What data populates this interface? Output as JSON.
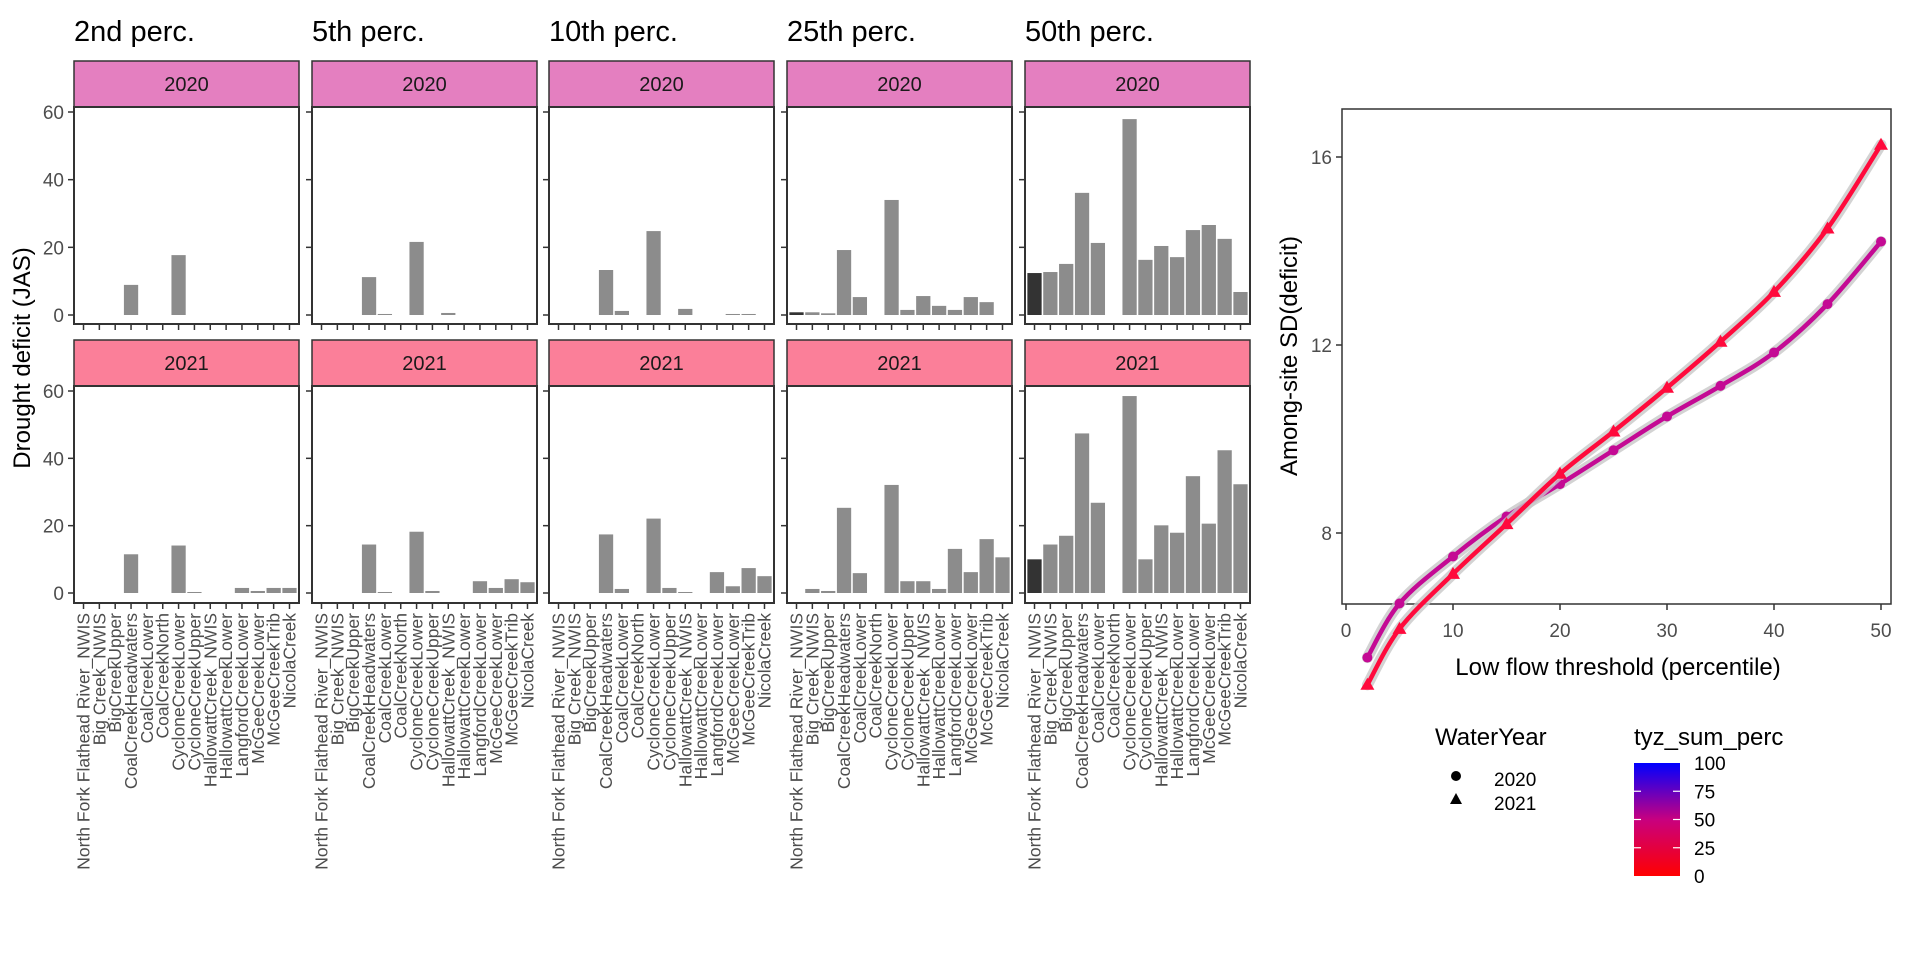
{
  "chart_data": [
    {
      "type": "bar",
      "facets": "columns = percentile threshold, rows = WaterYear",
      "ylabel": "Drought deficit (JAS)",
      "xlabel": "",
      "ylim": [
        0,
        60
      ],
      "yticks": [
        0,
        20,
        40,
        60
      ],
      "categories": [
        "North Fork Flathead River_NWIS",
        "Big Creek_NWIS",
        "BigCreekUpper",
        "CoalCreekHeadwaters",
        "CoalCreekLower",
        "CoalCreekNorth",
        "CycloneCreekLower",
        "CycloneCreekUpper",
        "HallowattCreek_NWIS",
        "HallowattCreekLower",
        "LangfordCreekLower",
        "McGeeCreekLower",
        "McGeeCreekTrib",
        "NicolaCreek"
      ],
      "highlighted_category": "North Fork Flathead River_NWIS",
      "colors": {
        "bar": "#8C8C8C",
        "bar_highlight": "#333333",
        "strip_2020": "#E47FC0",
        "strip_2021": "#FB7F99",
        "border": "#333333"
      },
      "columns": [
        {
          "title": "2nd perc.",
          "rows": [
            {
              "strip": "2020",
              "values": [
                0,
                0,
                0,
                8.9,
                0,
                0,
                17.7,
                0,
                0,
                0,
                0,
                0,
                0,
                0
              ]
            },
            {
              "strip": "2021",
              "values": [
                0,
                0,
                0,
                11.5,
                0,
                0,
                14.1,
                0.3,
                0,
                0,
                1.5,
                0.6,
                1.5,
                1.5
              ]
            }
          ]
        },
        {
          "title": "5th perc.",
          "rows": [
            {
              "strip": "2020",
              "values": [
                0,
                0,
                0,
                11.2,
                0.3,
                0,
                21.6,
                0,
                0.6,
                0,
                0,
                0,
                0,
                0
              ]
            },
            {
              "strip": "2021",
              "values": [
                0,
                0,
                0,
                14.4,
                0.3,
                0,
                18.2,
                0.6,
                0,
                0,
                3.5,
                1.5,
                4.1,
                3.2
              ]
            }
          ]
        },
        {
          "title": "10th perc.",
          "rows": [
            {
              "strip": "2020",
              "values": [
                0,
                0,
                0,
                13.3,
                1.2,
                0,
                24.8,
                0,
                1.8,
                0,
                0,
                0.3,
                0.3,
                0
              ]
            },
            {
              "strip": "2021",
              "values": [
                0,
                0,
                0,
                17.4,
                1.2,
                0,
                22.1,
                1.5,
                0.3,
                0,
                6.2,
                2.0,
                7.4,
                5.0
              ]
            }
          ]
        },
        {
          "title": "25th perc.",
          "rows": [
            {
              "strip": "2020",
              "values": [
                0.8,
                0.8,
                0.5,
                19.2,
                5.3,
                0,
                34.0,
                1.5,
                5.6,
                2.7,
                1.5,
                5.3,
                3.8,
                0
              ]
            },
            {
              "strip": "2021",
              "values": [
                0,
                1.2,
                0.6,
                25.3,
                5.9,
                0,
                32.1,
                3.5,
                3.5,
                1.2,
                13.1,
                6.2,
                16.0,
                10.6
              ]
            }
          ]
        },
        {
          "title": "50th perc.",
          "rows": [
            {
              "strip": "2020",
              "values": [
                12.4,
                12.7,
                15.1,
                36.1,
                21.3,
                0,
                57.9,
                16.3,
                20.4,
                17.1,
                25.1,
                26.6,
                22.5,
                6.8
              ]
            },
            {
              "strip": "2021",
              "values": [
                10.0,
                14.4,
                17.0,
                47.4,
                26.8,
                0,
                58.5,
                10.0,
                20.1,
                17.9,
                34.7,
                20.6,
                42.4,
                32.3
              ]
            }
          ]
        }
      ]
    },
    {
      "type": "line",
      "xlabel": "Low flow threshold (percentile)",
      "ylabel": "Among-site SD(deficit)",
      "xlim": [
        0,
        51
      ],
      "xticks": [
        0,
        10,
        20,
        30,
        40,
        50
      ],
      "ylim": [
        4.5,
        17
      ],
      "yticks": [
        8,
        12,
        16
      ],
      "grid": false,
      "x": [
        2,
        5,
        10,
        15,
        20,
        25,
        30,
        35,
        40,
        45,
        50
      ],
      "series": [
        {
          "name": "2020",
          "shape": "circle",
          "color": "#C40A94",
          "tyz_sum_perc": 55,
          "values": [
            5.35,
            6.5,
            7.5,
            8.35,
            9.04,
            9.76,
            10.48,
            11.13,
            11.84,
            12.87,
            14.2
          ]
        },
        {
          "name": "2021",
          "shape": "triangle",
          "color": "#FF0A3C",
          "tyz_sum_perc": 20,
          "values": [
            4.77,
            5.96,
            7.13,
            8.19,
            9.26,
            10.16,
            11.09,
            12.07,
            13.13,
            14.48,
            16.26
          ]
        }
      ],
      "smooth_band_color": "#C8C8C8",
      "legend": {
        "placement": "bottom",
        "shape_legend": {
          "title": "WaterYear",
          "items": [
            {
              "label": "2020",
              "shape": "circle"
            },
            {
              "label": "2021",
              "shape": "triangle"
            }
          ]
        },
        "color_legend": {
          "title": "tyz_sum_perc",
          "low_color": "#FF0000",
          "high_color": "#0000FF",
          "range": [
            0,
            100
          ],
          "ticks": [
            "0",
            "25",
            "50",
            "75",
            "100"
          ]
        }
      }
    }
  ]
}
